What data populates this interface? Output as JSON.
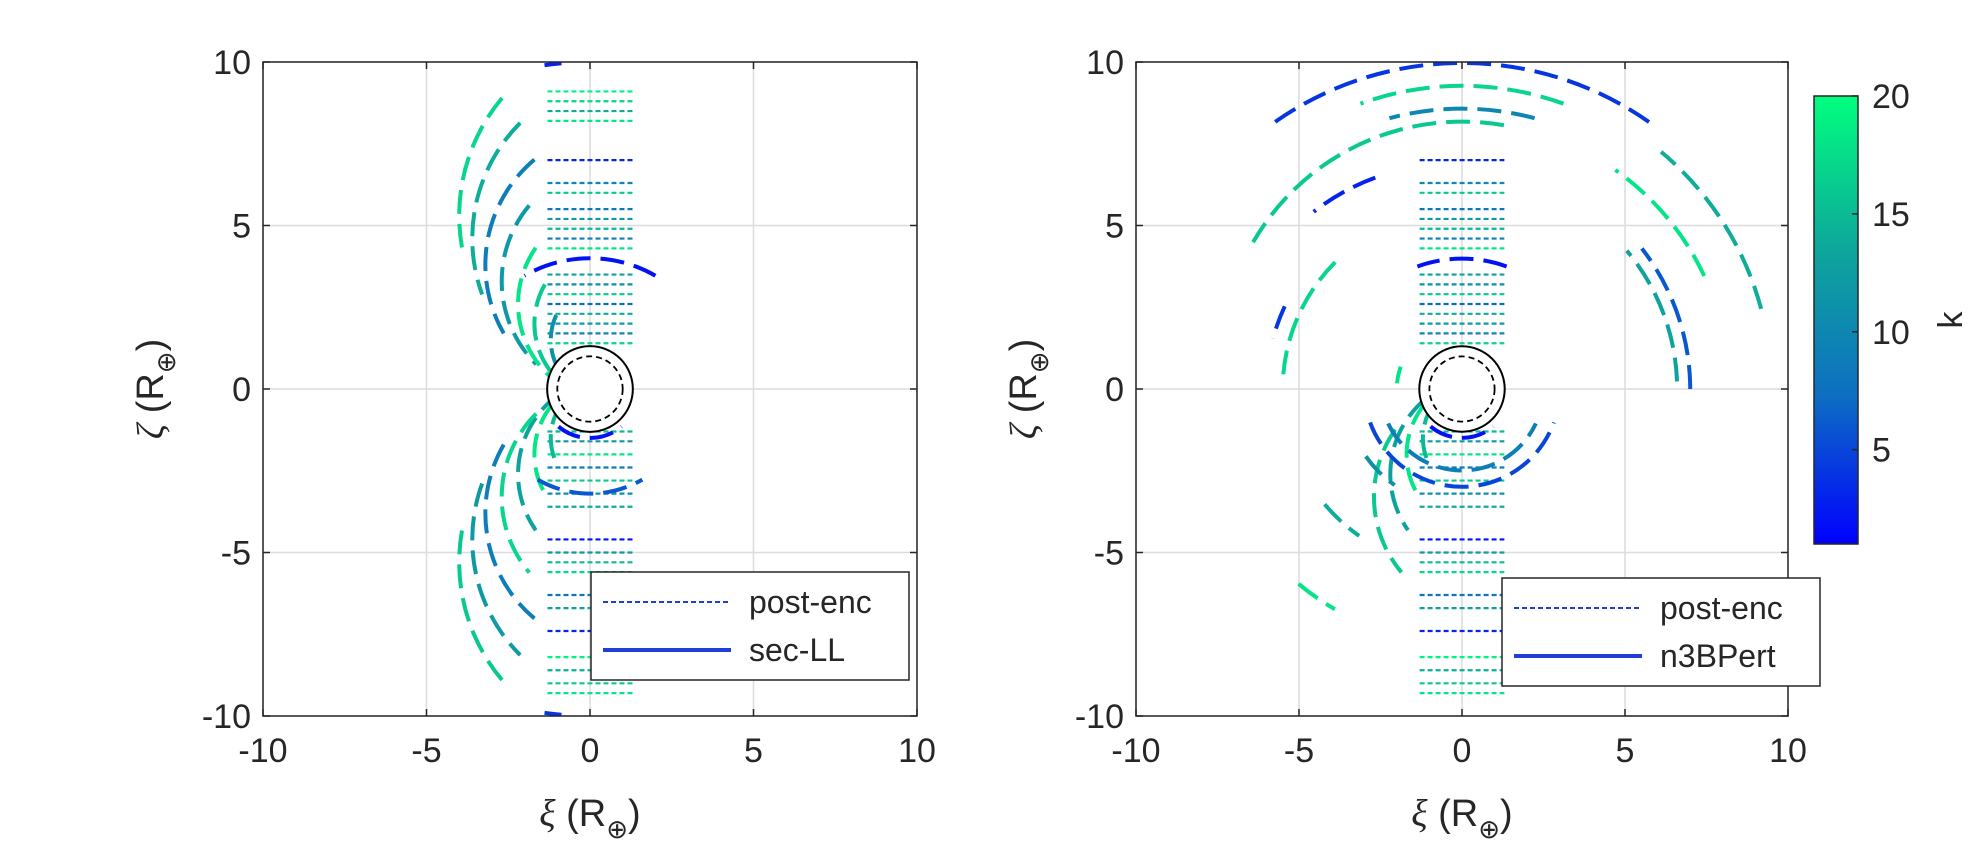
{
  "chart_data": [
    {
      "type": "scatter",
      "panel": "left",
      "xlabel": {
        "symbol": "ξ",
        "unit": "R",
        "subscript": "⊕"
      },
      "ylabel": {
        "symbol": "ζ",
        "unit": "R",
        "subscript": "⊕"
      },
      "xlim": [
        -10,
        10
      ],
      "ylim": [
        -10,
        10
      ],
      "xticks": [
        "-10",
        "-5",
        "0",
        "5",
        "10"
      ],
      "yticks": [
        "-10",
        "-5",
        "0",
        "5",
        "10"
      ],
      "grid": true,
      "legend_position": "bottom-right",
      "legend": [
        {
          "label": "post-enc",
          "style": "dashed",
          "color": "#1f3fd6"
        },
        {
          "label": "sec-LL",
          "style": "solid",
          "color": "#1f3fd6"
        }
      ],
      "post_enc_rows": [
        {
          "y": 9.1,
          "k": 19
        },
        {
          "y": 8.8,
          "k": 17
        },
        {
          "y": 8.5,
          "k": 14
        },
        {
          "y": 8.2,
          "k": 18
        },
        {
          "y": 7.0,
          "k": 3
        },
        {
          "y": 6.3,
          "k": 10
        },
        {
          "y": 6.0,
          "k": 16
        },
        {
          "y": 5.5,
          "k": 8
        },
        {
          "y": 5.2,
          "k": 12
        },
        {
          "y": 4.9,
          "k": 15
        },
        {
          "y": 4.6,
          "k": 9
        },
        {
          "y": 4.3,
          "k": 18
        },
        {
          "y": 3.5,
          "k": 13
        },
        {
          "y": 3.2,
          "k": 11
        },
        {
          "y": 2.9,
          "k": 16
        },
        {
          "y": 2.6,
          "k": 7
        },
        {
          "y": 2.3,
          "k": 14
        },
        {
          "y": 2.0,
          "k": 12
        },
        {
          "y": 1.7,
          "k": 10
        },
        {
          "y": 1.4,
          "k": 17
        },
        {
          "y": -1.3,
          "k": 15
        },
        {
          "y": -1.6,
          "k": 12
        },
        {
          "y": -2.0,
          "k": 18
        },
        {
          "y": -2.4,
          "k": 9
        },
        {
          "y": -2.8,
          "k": 16
        },
        {
          "y": -3.2,
          "k": 11
        },
        {
          "y": -3.6,
          "k": 14
        },
        {
          "y": -4.6,
          "k": 2
        },
        {
          "y": -5.0,
          "k": 12
        },
        {
          "y": -5.3,
          "k": 15
        },
        {
          "y": -5.6,
          "k": 17
        },
        {
          "y": -6.3,
          "k": 8
        },
        {
          "y": -6.7,
          "k": 13
        },
        {
          "y": -7.4,
          "k": 3
        },
        {
          "y": -8.2,
          "k": 19
        },
        {
          "y": -8.6,
          "k": 14
        },
        {
          "y": -9.0,
          "k": 16
        },
        {
          "y": -9.3,
          "k": 18
        }
      ],
      "sec_arcs": [
        {
          "cx": 1.6,
          "cy": 5.3,
          "r": 5.6,
          "a0": 140,
          "a1": 190,
          "k": 17
        },
        {
          "cx": 1.4,
          "cy": 4.6,
          "r": 5.0,
          "a0": 135,
          "a1": 200,
          "k": 14
        },
        {
          "cx": 1.0,
          "cy": 3.8,
          "r": 4.2,
          "a0": 130,
          "a1": 210,
          "k": 9
        },
        {
          "cx": 0.9,
          "cy": 3.3,
          "r": 3.6,
          "a0": 140,
          "a1": 225,
          "k": 12
        },
        {
          "cx": 0.8,
          "cy": 2.6,
          "r": 3.0,
          "a0": 145,
          "a1": 235,
          "k": 18
        },
        {
          "cx": 0.7,
          "cy": 2.0,
          "r": 2.4,
          "a0": 150,
          "a1": 245,
          "k": 16
        },
        {
          "cx": 0.6,
          "cy": 1.5,
          "r": 1.8,
          "a0": 155,
          "a1": 250,
          "k": 11
        },
        {
          "cx": 0.0,
          "cy": 0.0,
          "r": 4.0,
          "a0": 60,
          "a1": 120,
          "k": 2
        },
        {
          "cx": 0.0,
          "cy": 0.0,
          "r": 10.0,
          "a0": 95,
          "a1": 98,
          "k": 3
        },
        {
          "cx": 0.6,
          "cy": -1.5,
          "r": 1.8,
          "a0": 110,
          "a1": 205,
          "k": 15
        },
        {
          "cx": 0.7,
          "cy": -2.0,
          "r": 2.4,
          "a0": 115,
          "a1": 210,
          "k": 18
        },
        {
          "cx": 0.8,
          "cy": -2.6,
          "r": 3.0,
          "a0": 125,
          "a1": 215,
          "k": 13
        },
        {
          "cx": 0.9,
          "cy": -3.3,
          "r": 3.6,
          "a0": 135,
          "a1": 220,
          "k": 17
        },
        {
          "cx": 1.0,
          "cy": -3.8,
          "r": 4.2,
          "a0": 150,
          "a1": 230,
          "k": 9
        },
        {
          "cx": 1.4,
          "cy": -4.6,
          "r": 5.0,
          "a0": 160,
          "a1": 225,
          "k": 12
        },
        {
          "cx": 1.6,
          "cy": -5.3,
          "r": 5.6,
          "a0": 170,
          "a1": 220,
          "k": 16
        },
        {
          "cx": 0.0,
          "cy": 0.0,
          "r": 1.5,
          "a0": 230,
          "a1": 310,
          "k": 2
        },
        {
          "cx": 0.0,
          "cy": 0.0,
          "r": 3.2,
          "a0": 240,
          "a1": 300,
          "k": 6
        },
        {
          "cx": 0.0,
          "cy": 0.0,
          "r": 10.0,
          "a0": 262,
          "a1": 265,
          "k": 4
        }
      ]
    },
    {
      "type": "scatter",
      "panel": "right",
      "xlabel": {
        "symbol": "ξ",
        "unit": "R",
        "subscript": "⊕"
      },
      "ylabel": {
        "symbol": "ζ",
        "unit": "R",
        "subscript": "⊕"
      },
      "xlim": [
        -10,
        10
      ],
      "ylim": [
        -10,
        10
      ],
      "xticks": [
        "-10",
        "-5",
        "0",
        "5",
        "10"
      ],
      "yticks": [
        "-10",
        "-5",
        "0",
        "5",
        "10"
      ],
      "grid": true,
      "legend_position": "bottom-right",
      "legend": [
        {
          "label": "post-enc",
          "style": "dashed",
          "color": "#1f3fd6"
        },
        {
          "label": "n3BPert",
          "style": "solid",
          "color": "#1f3fd6"
        }
      ],
      "colorbar": {
        "label": "k",
        "range": [
          1,
          20
        ],
        "ticks": [
          "5",
          "10",
          "15",
          "20"
        ],
        "tick_values": [
          5,
          10,
          15,
          20
        ],
        "colors": [
          "#0000ff",
          "#0d6fc2",
          "#0ea89a",
          "#00ff7f"
        ]
      },
      "post_enc_rows": [
        {
          "y": 7.0,
          "k": 3
        },
        {
          "y": 6.3,
          "k": 10
        },
        {
          "y": 6.0,
          "k": 16
        },
        {
          "y": 5.5,
          "k": 8
        },
        {
          "y": 5.2,
          "k": 12
        },
        {
          "y": 4.9,
          "k": 15
        },
        {
          "y": 4.6,
          "k": 9
        },
        {
          "y": 4.3,
          "k": 18
        },
        {
          "y": 3.5,
          "k": 13
        },
        {
          "y": 3.2,
          "k": 11
        },
        {
          "y": 2.9,
          "k": 16
        },
        {
          "y": 2.6,
          "k": 7
        },
        {
          "y": 2.3,
          "k": 14
        },
        {
          "y": 2.0,
          "k": 12
        },
        {
          "y": 1.7,
          "k": 10
        },
        {
          "y": 1.4,
          "k": 17
        },
        {
          "y": -1.3,
          "k": 15
        },
        {
          "y": -1.6,
          "k": 12
        },
        {
          "y": -2.0,
          "k": 18
        },
        {
          "y": -2.4,
          "k": 9
        },
        {
          "y": -2.8,
          "k": 16
        },
        {
          "y": -3.2,
          "k": 11
        },
        {
          "y": -3.6,
          "k": 14
        },
        {
          "y": -4.6,
          "k": 2
        },
        {
          "y": -5.0,
          "k": 12
        },
        {
          "y": -5.3,
          "k": 15
        },
        {
          "y": -5.6,
          "k": 17
        },
        {
          "y": -6.3,
          "k": 8
        },
        {
          "y": -6.7,
          "k": 13
        },
        {
          "y": -7.4,
          "k": 3
        },
        {
          "y": -8.2,
          "k": 19
        },
        {
          "y": -8.6,
          "k": 14
        },
        {
          "y": -9.0,
          "k": 16
        },
        {
          "y": -9.3,
          "k": 18
        }
      ],
      "sec_arcs": [
        {
          "cx": 0.0,
          "cy": 0.0,
          "r": 10.0,
          "a0": 55,
          "a1": 125,
          "k": 4
        },
        {
          "cx": 0.0,
          "cy": 0.2,
          "r": 9.1,
          "a0": 70,
          "a1": 110,
          "k": 17
        },
        {
          "cx": 0.0,
          "cy": 0.0,
          "r": 8.6,
          "a0": 75,
          "a1": 105,
          "k": 10
        },
        {
          "cx": 0.0,
          "cy": 0.8,
          "r": 7.4,
          "a0": 80,
          "a1": 150,
          "k": 16
        },
        {
          "cx": 0.0,
          "cy": 0.0,
          "r": 5.5,
          "a0": 135,
          "a1": 178,
          "k": 17
        },
        {
          "cx": 0.0,
          "cy": 0.0,
          "r": 4.0,
          "a0": 70,
          "a1": 110,
          "k": 2
        },
        {
          "cx": -0.3,
          "cy": 0.0,
          "r": 6.9,
          "a0": 110,
          "a1": 128,
          "k": 3
        },
        {
          "cx": 0.0,
          "cy": 0.0,
          "r": 9.5,
          "a0": 15,
          "a1": 50,
          "k": 14
        },
        {
          "cx": 0.0,
          "cy": 0.0,
          "r": 8.2,
          "a0": 25,
          "a1": 55,
          "k": 18
        },
        {
          "cx": 0.0,
          "cy": 0.0,
          "r": 7.0,
          "a0": 0,
          "a1": 38,
          "k": 6
        },
        {
          "cx": 0.0,
          "cy": 0.0,
          "r": 6.6,
          "a0": 2,
          "a1": 40,
          "k": 13
        },
        {
          "cx": 0.0,
          "cy": 0.0,
          "r": 6.0,
          "a0": 155,
          "a1": 165,
          "k": 4
        },
        {
          "cx": 0.6,
          "cy": -1.5,
          "r": 1.8,
          "a0": 110,
          "a1": 205,
          "k": 15
        },
        {
          "cx": 0.7,
          "cy": -2.0,
          "r": 2.4,
          "a0": 115,
          "a1": 210,
          "k": 18
        },
        {
          "cx": 0.8,
          "cy": -2.6,
          "r": 3.0,
          "a0": 130,
          "a1": 215,
          "k": 13
        },
        {
          "cx": 0.9,
          "cy": -3.3,
          "r": 3.6,
          "a0": 145,
          "a1": 220,
          "k": 16
        },
        {
          "cx": 0.0,
          "cy": 0.0,
          "r": 1.5,
          "a0": 230,
          "a1": 310,
          "k": 2
        },
        {
          "cx": 0.0,
          "cy": 0.0,
          "r": 3.0,
          "a0": 200,
          "a1": 340,
          "k": 5
        },
        {
          "cx": 0.0,
          "cy": 0.0,
          "r": 2.5,
          "a0": 205,
          "a1": 335,
          "k": 9
        },
        {
          "cx": 0.0,
          "cy": 0.0,
          "r": 3.6,
          "a0": 215,
          "a1": 235,
          "k": 11
        },
        {
          "cx": 0.0,
          "cy": 0.0,
          "r": 7.8,
          "a0": 230,
          "a1": 240,
          "k": 18
        },
        {
          "cx": 0.0,
          "cy": 0.0,
          "r": 5.5,
          "a0": 220,
          "a1": 235,
          "k": 14
        },
        {
          "cx": 0.0,
          "cy": 0.0,
          "r": 2.0,
          "a0": 160,
          "a1": 175,
          "k": 18
        }
      ]
    }
  ]
}
